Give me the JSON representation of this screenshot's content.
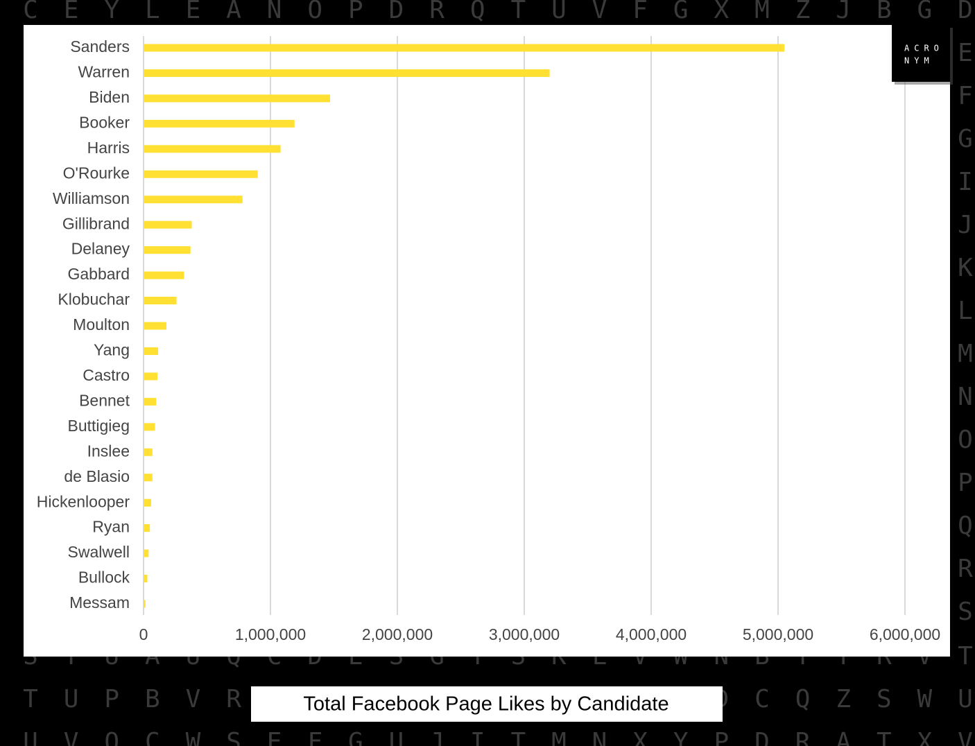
{
  "chart_data": {
    "type": "hbar",
    "title": "Total Facebook Page Likes by Candidate",
    "categories": [
      "Sanders",
      "Warren",
      "Biden",
      "Booker",
      "Harris",
      "O'Rourke",
      "Williamson",
      "Gillibrand",
      "Delaney",
      "Gabbard",
      "Klobuchar",
      "Moulton",
      "Yang",
      "Castro",
      "Bennet",
      "Buttigieg",
      "Inslee",
      "de Blasio",
      "Hickenlooper",
      "Ryan",
      "Swalwell",
      "Bullock",
      "Messam"
    ],
    "values": [
      5050000,
      3200000,
      1470000,
      1190000,
      1080000,
      900000,
      780000,
      380000,
      370000,
      320000,
      260000,
      180000,
      115000,
      110000,
      100000,
      90000,
      70000,
      70000,
      60000,
      50000,
      40000,
      30000,
      15000
    ],
    "color": "#ffe033",
    "xlim": [
      0,
      6000000
    ],
    "xticks": [
      0,
      {
        "value": 1000000,
        "label": "1,000,000"
      },
      {
        "value": 2000000,
        "label": "2,000,000"
      },
      {
        "value": 3000000,
        "label": "3,000,000"
      },
      {
        "value": 4000000,
        "label": "4,000,000"
      },
      {
        "value": 5000000,
        "label": "5,000,000"
      },
      {
        "value": 6000000,
        "label": "6,000,000"
      }
    ],
    "grid": true
  },
  "logo": [
    "ACRO",
    "NYM"
  ],
  "background": {
    "top_row": "CEYLEANOPDRQTUVFGXMZJBGD",
    "right_column": "EFGIJKLMNOPQRS",
    "bottom_rows": [
      "STUAUQCDESGTSKLVWNBTYRVT",
      "UVOCWSEFGUJITMNXYPDRATXV"
    ],
    "title_row_left": "TUPBVR",
    "title_row_right": "DCQZSWU"
  }
}
